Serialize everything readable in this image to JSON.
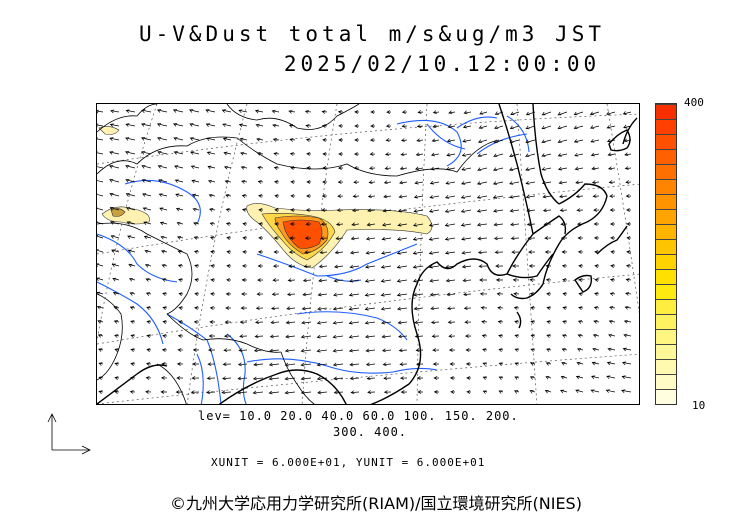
{
  "title": {
    "line1": "U-V&Dust total m/s&ug/m3 JST",
    "line2": "2025/02/10.12:00:00"
  },
  "colorbar": {
    "max_label": "400",
    "min_label": "10",
    "colors": [
      "#ffffe0",
      "#fffcc8",
      "#fffab0",
      "#fff898",
      "#fff580",
      "#fff260",
      "#ffee40",
      "#ffea10",
      "#ffe000",
      "#ffd200",
      "#ffc400",
      "#ffb400",
      "#ffa400",
      "#ff9400",
      "#ff8400",
      "#ff7000",
      "#ff6000",
      "#ff5000",
      "#ff4000",
      "#f83000"
    ]
  },
  "levels": {
    "line1": "lev= 10.0 20.0 40.0 60.0 100. 150. 200.",
    "line2": "300. 400."
  },
  "units": {
    "line": "XUNIT = 6.000E+01, YUNIT = 6.000E+01"
  },
  "copyright": "©九州大学応用力学研究所(RIAM)/国立環境研究所(NIES)",
  "map": {
    "coastline_color": "#000000",
    "river_color": "#1f5fff",
    "grid_color": "#555555",
    "dust_plume_core": "#ff5000",
    "dust_plume_light": "#fff2b0"
  }
}
